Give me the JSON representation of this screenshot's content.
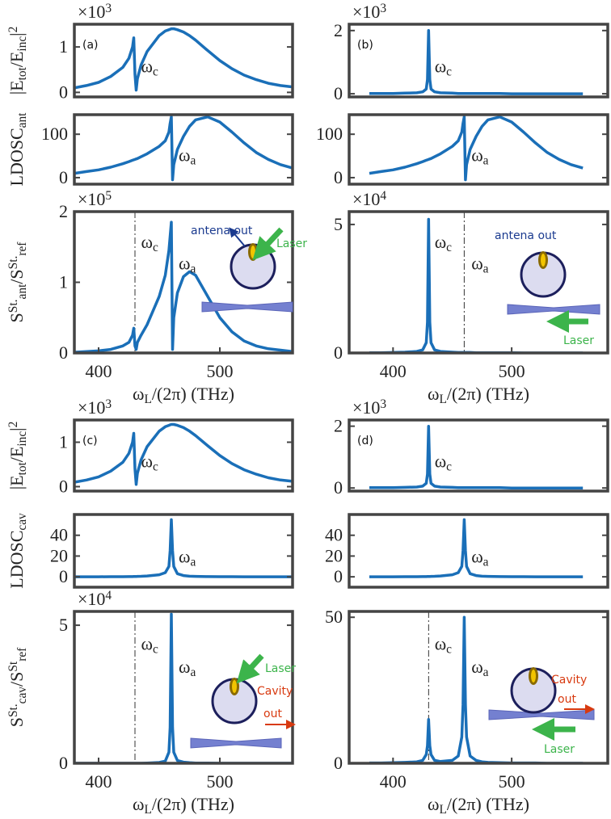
{
  "chart_data": [
    {
      "type": "line",
      "panel_label": "(a)",
      "y_multiplier": [
        {
          "text": "×10"
        },
        {
          "sup": "3"
        }
      ],
      "ylabel": [
        {
          "text": "|E"
        },
        {
          "sub": "tot"
        },
        {
          "text": "/E"
        },
        {
          "sub": "inc"
        },
        {
          "text": "|"
        },
        {
          "sup": "2"
        }
      ],
      "x": [
        380,
        390,
        400,
        410,
        420,
        425,
        428,
        429,
        430,
        431,
        432,
        435,
        440,
        450,
        455,
        458,
        459,
        460,
        461,
        462,
        465,
        470,
        475,
        480,
        490,
        500,
        510,
        520,
        530,
        540,
        550,
        560
      ],
      "values": [
        0.1,
        0.15,
        0.22,
        0.35,
        0.55,
        0.75,
        1.0,
        1.2,
        0.4,
        0.05,
        0.3,
        0.6,
        0.9,
        1.25,
        1.35,
        1.38,
        1.39,
        1.4,
        1.4,
        1.4,
        1.38,
        1.33,
        1.25,
        1.15,
        0.92,
        0.7,
        0.52,
        0.38,
        0.28,
        0.2,
        0.15,
        0.12
      ],
      "color": "#1a6fb8",
      "xlim": [
        380,
        560
      ],
      "ylim": [
        -0.1,
        1.5
      ],
      "yticks": [
        0,
        1
      ],
      "annotations": [
        [
          {
            "text": "ω"
          },
          {
            "sub": "c"
          }
        ]
      ]
    },
    {
      "type": "line",
      "ylabel": [
        {
          "text": "LDOSC"
        },
        {
          "sub": "ant"
        }
      ],
      "x": [
        380,
        390,
        400,
        410,
        420,
        425,
        428,
        429,
        430,
        431,
        432,
        435,
        440,
        450,
        455,
        458,
        459,
        460,
        461,
        462,
        465,
        470,
        475,
        480,
        490,
        500,
        510,
        520,
        530,
        540,
        550,
        560
      ],
      "values": [
        10,
        14,
        18,
        24,
        32,
        37,
        40,
        41,
        42,
        43,
        44,
        48,
        55,
        72,
        85,
        105,
        125,
        140,
        -5,
        30,
        65,
        95,
        118,
        133,
        140,
        128,
        105,
        80,
        58,
        42,
        30,
        22
      ],
      "color": "#1a6fb8",
      "xlim": [
        380,
        560
      ],
      "ylim": [
        -15,
        145
      ],
      "yticks": [
        0,
        100
      ],
      "annotations": [
        [
          {
            "text": "ω"
          },
          {
            "sub": "a"
          }
        ]
      ]
    },
    {
      "type": "line",
      "y_multiplier": [
        {
          "text": "×10"
        },
        {
          "sup": "5"
        }
      ],
      "ylabel": [
        {
          "text": "S"
        },
        {
          "sup": "St."
        },
        {
          "sub": "ant"
        },
        {
          "text": "/S"
        },
        {
          "sup": "St."
        },
        {
          "sub": "ref"
        }
      ],
      "xlabel": [
        {
          "text": "ω"
        },
        {
          "sub": "L"
        },
        {
          "text": "/(2π) (THz)"
        }
      ],
      "x": [
        380,
        390,
        400,
        410,
        420,
        425,
        428,
        429,
        430,
        431,
        432,
        435,
        440,
        450,
        455,
        458,
        459,
        460,
        461,
        462,
        465,
        470,
        475,
        480,
        490,
        500,
        510,
        520,
        530,
        540,
        550,
        560
      ],
      "values": [
        0.01,
        0.02,
        0.03,
        0.05,
        0.1,
        0.15,
        0.25,
        0.35,
        0.1,
        0.05,
        0.15,
        0.25,
        0.4,
        0.8,
        1.1,
        1.45,
        1.65,
        1.85,
        0.05,
        0.5,
        0.85,
        1.08,
        1.15,
        1.1,
        0.8,
        0.5,
        0.3,
        0.17,
        0.1,
        0.06,
        0.04,
        0.02
      ],
      "color": "#1a6fb8",
      "xlim": [
        380,
        560
      ],
      "ylim": [
        0,
        2
      ],
      "yticks": [
        0,
        1,
        2
      ],
      "xticks": [
        400,
        500
      ],
      "vlines": [
        430
      ],
      "annotations": [
        [
          {
            "text": "ω"
          },
          {
            "sub": "c"
          }
        ],
        [
          {
            "text": "ω"
          },
          {
            "sub": "a"
          }
        ]
      ],
      "inset": [
        {
          "text": "antena out",
          "color": "#1a3a8f"
        },
        {
          "text": "Laser",
          "color": "#3cb44b"
        }
      ]
    },
    {
      "type": "line",
      "panel_label": "(b)",
      "y_multiplier": [
        {
          "text": "×10"
        },
        {
          "sup": "3"
        }
      ],
      "x": [
        380,
        390,
        400,
        410,
        420,
        425,
        428,
        429,
        430,
        431,
        432,
        435,
        440,
        450,
        455,
        458,
        459,
        460,
        461,
        462,
        465,
        470,
        475,
        480,
        490,
        500,
        510,
        520,
        530,
        540,
        550,
        560
      ],
      "values": [
        0.01,
        0.01,
        0.01,
        0.02,
        0.03,
        0.06,
        0.15,
        0.45,
        2.0,
        0.45,
        0.15,
        0.06,
        0.03,
        0.02,
        0.01,
        0.01,
        0.01,
        0.01,
        0.01,
        0.01,
        0.01,
        0.01,
        0.01,
        0.01,
        0.01,
        0,
        0,
        0,
        0,
        0,
        0,
        0
      ],
      "color": "#1a6fb8",
      "xlim": [
        363,
        581
      ],
      "ylim": [
        -0.1,
        2.2
      ],
      "yticks": [
        0,
        2
      ],
      "annotations": [
        [
          {
            "text": "ω"
          },
          {
            "sub": "c"
          }
        ]
      ]
    },
    {
      "type": "line",
      "x": [
        380,
        390,
        400,
        410,
        420,
        425,
        428,
        429,
        430,
        431,
        432,
        435,
        440,
        450,
        455,
        458,
        459,
        460,
        461,
        462,
        465,
        470,
        475,
        480,
        490,
        500,
        510,
        520,
        530,
        540,
        550,
        560
      ],
      "values": [
        10,
        14,
        18,
        24,
        32,
        37,
        40,
        41,
        42,
        43,
        44,
        48,
        55,
        72,
        85,
        105,
        125,
        140,
        -5,
        30,
        65,
        95,
        118,
        133,
        140,
        128,
        105,
        80,
        58,
        42,
        30,
        22
      ],
      "color": "#1a6fb8",
      "xlim": [
        363,
        581
      ],
      "ylim": [
        -15,
        145
      ],
      "yticks": [
        0,
        100
      ],
      "annotations": [
        [
          {
            "text": "ω"
          },
          {
            "sub": "a"
          }
        ]
      ]
    },
    {
      "type": "line",
      "y_multiplier": [
        {
          "text": "×10"
        },
        {
          "sup": "4"
        }
      ],
      "xlabel": [
        {
          "text": "ω"
        },
        {
          "sub": "L"
        },
        {
          "text": "/(2π) (THz)"
        }
      ],
      "x": [
        380,
        390,
        400,
        410,
        420,
        425,
        428,
        429,
        430,
        431,
        432,
        435,
        440,
        450,
        455,
        458,
        459,
        460,
        461,
        462,
        465,
        470,
        475,
        480,
        490,
        500,
        510,
        520,
        530,
        540,
        550,
        560
      ],
      "values": [
        0.01,
        0.01,
        0.02,
        0.03,
        0.06,
        0.12,
        0.4,
        1.2,
        5.2,
        1.2,
        0.4,
        0.12,
        0.06,
        0.03,
        0.02,
        0.02,
        0.02,
        0.02,
        0.02,
        0.02,
        0.02,
        0.01,
        0.01,
        0.01,
        0.01,
        0.01,
        0,
        0,
        0,
        0,
        0,
        0
      ],
      "color": "#1a6fb8",
      "xlim": [
        363,
        581
      ],
      "ylim": [
        0,
        5.5
      ],
      "yticks": [
        0,
        5
      ],
      "xticks": [
        400,
        500
      ],
      "vlines": [
        460
      ],
      "annotations": [
        [
          {
            "text": "ω"
          },
          {
            "sub": "c"
          }
        ],
        [
          {
            "text": "ω"
          },
          {
            "sub": "a"
          }
        ]
      ],
      "inset": [
        {
          "text": "antena out",
          "color": "#1a3a8f"
        },
        {
          "text": "Laser",
          "color": "#3cb44b"
        }
      ]
    },
    {
      "type": "line",
      "panel_label": "(c)",
      "y_multiplier": [
        {
          "text": "×10"
        },
        {
          "sup": "3"
        }
      ],
      "ylabel": [
        {
          "text": "|E"
        },
        {
          "sub": "tot"
        },
        {
          "text": "/E"
        },
        {
          "sub": "inc"
        },
        {
          "text": "|"
        },
        {
          "sup": "2"
        }
      ],
      "x": [
        380,
        390,
        400,
        410,
        420,
        425,
        428,
        429,
        430,
        431,
        432,
        435,
        440,
        450,
        455,
        458,
        459,
        460,
        461,
        462,
        465,
        470,
        475,
        480,
        490,
        500,
        510,
        520,
        530,
        540,
        550,
        560
      ],
      "values": [
        0.1,
        0.15,
        0.22,
        0.35,
        0.55,
        0.75,
        1.0,
        1.2,
        0.4,
        0.05,
        0.3,
        0.6,
        0.9,
        1.25,
        1.35,
        1.38,
        1.39,
        1.4,
        1.4,
        1.4,
        1.38,
        1.33,
        1.25,
        1.15,
        0.92,
        0.7,
        0.52,
        0.38,
        0.28,
        0.2,
        0.15,
        0.12
      ],
      "color": "#1a6fb8",
      "xlim": [
        380,
        560
      ],
      "ylim": [
        -0.1,
        1.5
      ],
      "yticks": [
        0,
        1
      ],
      "annotations": [
        [
          {
            "text": "ω"
          },
          {
            "sub": "c"
          }
        ]
      ]
    },
    {
      "type": "line",
      "ylabel": [
        {
          "text": "LDOSC"
        },
        {
          "sub": "cav"
        }
      ],
      "x": [
        380,
        390,
        400,
        410,
        420,
        425,
        428,
        429,
        430,
        431,
        432,
        435,
        440,
        450,
        455,
        458,
        459,
        460,
        461,
        462,
        465,
        470,
        475,
        480,
        490,
        500,
        510,
        520,
        530,
        540,
        550,
        560
      ],
      "values": [
        0,
        0,
        0,
        0.1,
        0.1,
        0.2,
        0.2,
        0.3,
        0.3,
        0.3,
        0.4,
        0.5,
        0.8,
        2,
        4,
        10,
        25,
        55,
        25,
        10,
        3,
        1.2,
        0.6,
        0.4,
        0.2,
        0.1,
        0.1,
        0,
        0,
        0,
        0,
        0
      ],
      "color": "#1a6fb8",
      "xlim": [
        380,
        560
      ],
      "ylim": [
        -10,
        60
      ],
      "yticks": [
        0,
        20,
        40
      ],
      "annotations": [
        [
          {
            "text": "ω"
          },
          {
            "sub": "a"
          }
        ]
      ]
    },
    {
      "type": "line",
      "y_multiplier": [
        {
          "text": "×10"
        },
        {
          "sup": "4"
        }
      ],
      "ylabel": [
        {
          "text": "S"
        },
        {
          "sup": "St."
        },
        {
          "sub": "cav"
        },
        {
          "text": "/S"
        },
        {
          "sup": "St"
        },
        {
          "sub": "ref"
        }
      ],
      "xlabel": [
        {
          "text": "ω"
        },
        {
          "sub": "L"
        },
        {
          "text": "/(2π) (THz)"
        }
      ],
      "x": [
        380,
        390,
        400,
        410,
        420,
        425,
        428,
        429,
        430,
        431,
        432,
        435,
        440,
        450,
        455,
        458,
        459,
        460,
        461,
        462,
        465,
        470,
        475,
        480,
        490,
        500,
        510,
        520,
        530,
        540,
        550,
        560
      ],
      "values": [
        0,
        0,
        0,
        0,
        0,
        0,
        0,
        0,
        0,
        0,
        0,
        0,
        0.01,
        0.03,
        0.08,
        0.4,
        1.3,
        5.4,
        1.3,
        0.4,
        0.1,
        0.04,
        0.02,
        0.01,
        0.01,
        0,
        0,
        0,
        0,
        0,
        0,
        0
      ],
      "color": "#1a6fb8",
      "xlim": [
        380,
        560
      ],
      "ylim": [
        0,
        5.5
      ],
      "yticks": [
        0,
        5
      ],
      "xticks": [
        400,
        500
      ],
      "vlines": [
        430
      ],
      "annotations": [
        [
          {
            "text": "ω"
          },
          {
            "sub": "c"
          }
        ],
        [
          {
            "text": "ω"
          },
          {
            "sub": "a"
          }
        ]
      ],
      "inset": [
        {
          "text": "Laser",
          "color": "#3cb44b"
        },
        {
          "text": "Cavity",
          "color": "#d83a10"
        },
        {
          "text": "out",
          "color": "#d83a10"
        }
      ]
    },
    {
      "type": "line",
      "panel_label": "(d)",
      "y_multiplier": [
        {
          "text": "×10"
        },
        {
          "sup": "3"
        }
      ],
      "x": [
        380,
        390,
        400,
        410,
        420,
        425,
        428,
        429,
        430,
        431,
        432,
        435,
        440,
        450,
        455,
        458,
        459,
        460,
        461,
        462,
        465,
        470,
        475,
        480,
        490,
        500,
        510,
        520,
        530,
        540,
        550,
        560
      ],
      "values": [
        0.01,
        0.01,
        0.01,
        0.02,
        0.03,
        0.06,
        0.15,
        0.45,
        2.0,
        0.45,
        0.15,
        0.06,
        0.03,
        0.02,
        0.01,
        0.01,
        0.01,
        0.01,
        0.01,
        0.01,
        0.01,
        0.01,
        0.01,
        0.01,
        0.01,
        0,
        0,
        0,
        0,
        0,
        0,
        0
      ],
      "color": "#1a6fb8",
      "xlim": [
        363,
        581
      ],
      "ylim": [
        -0.1,
        2.2
      ],
      "yticks": [
        0,
        2
      ],
      "annotations": [
        [
          {
            "text": "ω"
          },
          {
            "sub": "c"
          }
        ]
      ]
    },
    {
      "type": "line",
      "x": [
        380,
        390,
        400,
        410,
        420,
        425,
        428,
        429,
        430,
        431,
        432,
        435,
        440,
        450,
        455,
        458,
        459,
        460,
        461,
        462,
        465,
        470,
        475,
        480,
        490,
        500,
        510,
        520,
        530,
        540,
        550,
        560
      ],
      "values": [
        0,
        0,
        0,
        0.1,
        0.1,
        0.2,
        0.2,
        0.3,
        0.3,
        0.3,
        0.4,
        0.5,
        0.8,
        2,
        4,
        10,
        25,
        55,
        25,
        10,
        3,
        1.2,
        0.6,
        0.4,
        0.2,
        0.1,
        0.1,
        0,
        0,
        0,
        0,
        0
      ],
      "color": "#1a6fb8",
      "xlim": [
        363,
        581
      ],
      "ylim": [
        -10,
        60
      ],
      "yticks": [
        0,
        20,
        40
      ],
      "annotations": [
        [
          {
            "text": "ω"
          },
          {
            "sub": "a"
          }
        ]
      ]
    },
    {
      "type": "line",
      "xlabel": [
        {
          "text": "ω"
        },
        {
          "sub": "L"
        },
        {
          "text": "/(2π) (THz)"
        }
      ],
      "x": [
        380,
        390,
        400,
        410,
        420,
        425,
        428,
        429,
        430,
        431,
        432,
        435,
        440,
        450,
        455,
        458,
        459,
        460,
        461,
        462,
        465,
        470,
        475,
        480,
        490,
        500,
        510,
        520,
        530,
        540,
        550,
        560
      ],
      "values": [
        0.1,
        0.1,
        0.2,
        0.3,
        0.5,
        1,
        3,
        6,
        15,
        6,
        3,
        1,
        0.6,
        1,
        2.5,
        9,
        20,
        50,
        20,
        9,
        2.5,
        1,
        0.5,
        0.3,
        0.2,
        0.1,
        0.1,
        0.1,
        0,
        0,
        0,
        0
      ],
      "color": "#1a6fb8",
      "xlim": [
        363,
        581
      ],
      "ylim": [
        0,
        52
      ],
      "yticks": [
        0,
        50
      ],
      "xticks": [
        400,
        500
      ],
      "vlines": [
        430
      ],
      "annotations": [
        [
          {
            "text": "ω"
          },
          {
            "sub": "c"
          }
        ],
        [
          {
            "text": "ω"
          },
          {
            "sub": "a"
          }
        ]
      ],
      "inset": [
        {
          "text": "Cavity",
          "color": "#d83a10"
        },
        {
          "text": "out",
          "color": "#d83a10"
        },
        {
          "text": "Laser",
          "color": "#3cb44b"
        }
      ]
    }
  ]
}
